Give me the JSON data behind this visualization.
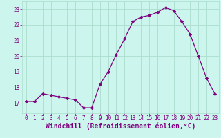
{
  "x": [
    0,
    1,
    2,
    3,
    4,
    5,
    6,
    7,
    8,
    9,
    10,
    11,
    12,
    13,
    14,
    15,
    16,
    17,
    18,
    19,
    20,
    21,
    22,
    23
  ],
  "y": [
    17.1,
    17.1,
    17.6,
    17.5,
    17.4,
    17.3,
    17.2,
    16.7,
    16.7,
    18.2,
    19.0,
    20.1,
    21.1,
    22.2,
    22.5,
    22.6,
    22.8,
    23.1,
    22.9,
    22.2,
    21.4,
    20.0,
    18.6,
    17.6
  ],
  "line_color": "#7f007f",
  "marker_color": "#7f007f",
  "bg_color": "#ccf5ee",
  "grid_color": "#aaddcc",
  "xlabel": "Windchill (Refroidissement éolien,°C)",
  "xlabel_color": "#7f007f",
  "ylim": [
    16.35,
    23.5
  ],
  "xlim": [
    -0.5,
    23.5
  ],
  "yticks": [
    17,
    18,
    19,
    20,
    21,
    22,
    23
  ],
  "xticks": [
    0,
    1,
    2,
    3,
    4,
    5,
    6,
    7,
    8,
    9,
    10,
    11,
    12,
    13,
    14,
    15,
    16,
    17,
    18,
    19,
    20,
    21,
    22,
    23
  ],
  "tick_color": "#7f007f",
  "tick_fontsize": 5.5,
  "xlabel_fontsize": 7.0,
  "xlabel_fontweight": "bold"
}
